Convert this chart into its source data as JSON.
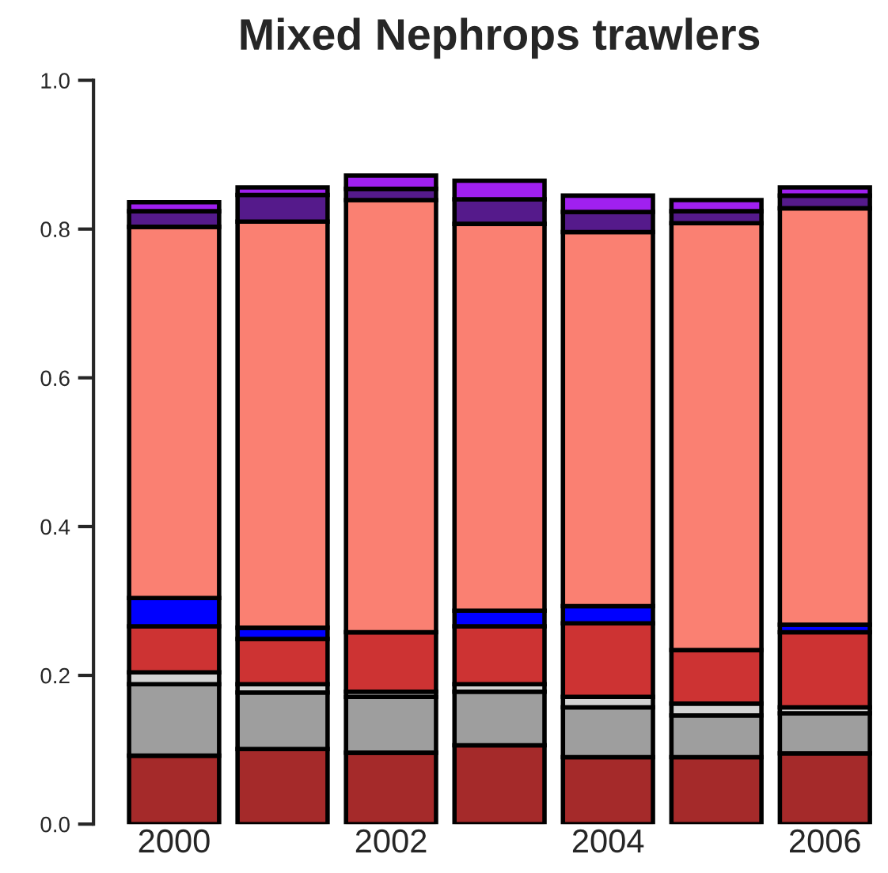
{
  "chart_data": {
    "type": "bar",
    "title": "Mixed Nephrops trawlers",
    "stacked": true,
    "categories": [
      "2000",
      null,
      "2002",
      null,
      "2004",
      null,
      "2006"
    ],
    "series": [
      {
        "color": "#a52a2a",
        "values": [
          0.092,
          0.101,
          0.096,
          0.106,
          0.09,
          0.09,
          0.095
        ]
      },
      {
        "color": "#9e9e9e",
        "values": [
          0.096,
          0.076,
          0.075,
          0.072,
          0.067,
          0.056,
          0.054
        ]
      },
      {
        "color": "#d3d3d3",
        "values": [
          0.016,
          0.011,
          0.007,
          0.01,
          0.014,
          0.016,
          0.008
        ]
      },
      {
        "color": "#cd3333",
        "values": [
          0.062,
          0.061,
          0.08,
          0.078,
          0.099,
          0.072,
          0.101
        ]
      },
      {
        "color": "#0000ff",
        "values": [
          0.038,
          0.015,
          0,
          0.021,
          0.023,
          0,
          0.01
        ]
      },
      {
        "color": "#fa8072",
        "values": [
          0.499,
          0.546,
          0.581,
          0.52,
          0.503,
          0.574,
          0.56
        ]
      },
      {
        "color": "#551a8b",
        "values": [
          0.021,
          0.036,
          0.015,
          0.033,
          0.027,
          0.016,
          0.017
        ]
      },
      {
        "color": "#a020f0",
        "values": [
          0.012,
          0.01,
          0.018,
          0.025,
          0.022,
          0.015,
          0.011
        ]
      }
    ],
    "ylim": [
      0,
      1
    ],
    "yticks": [
      {
        "value": 0,
        "label": "0.0"
      },
      {
        "value": 0.2,
        "label": "0.2"
      },
      {
        "value": 0.4,
        "label": "0.4"
      },
      {
        "value": 0.6,
        "label": "0.6"
      },
      {
        "value": 0.8,
        "label": "0.8"
      },
      {
        "value": 1,
        "label": "1.0"
      }
    ],
    "grid": false
  }
}
